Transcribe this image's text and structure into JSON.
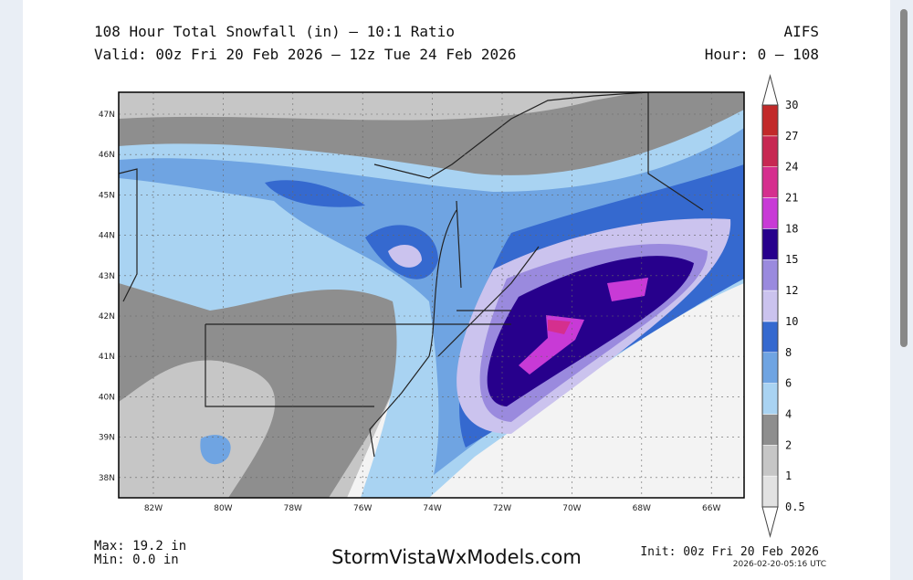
{
  "header": {
    "title": "108 Hour Total Snowfall (in) – 10:1 Ratio",
    "valid": "Valid: 00z Fri 20 Feb 2026 – 12z Tue 24 Feb 2026",
    "model": "AIFS",
    "hour": "Hour: 0 – 108"
  },
  "map": {
    "lat_labels": [
      "47N",
      "46N",
      "45N",
      "44N",
      "43N",
      "42N",
      "41N",
      "40N",
      "39N",
      "38N"
    ],
    "lon_labels": [
      "82W",
      "80W",
      "78W",
      "76W",
      "74W",
      "72W",
      "70W",
      "68W",
      "66W"
    ]
  },
  "colorbar": {
    "levels": [
      0.5,
      1,
      2,
      4,
      6,
      8,
      10,
      12,
      15,
      18,
      21,
      24,
      27,
      30
    ],
    "colors": [
      "#e2e2e2",
      "#c6c6c6",
      "#8e8e8e",
      "#a9d3f2",
      "#6fa4e2",
      "#3569cf",
      "#cbc3ee",
      "#9a8ade",
      "#27008c",
      "#c83ad6",
      "#d52f8e",
      "#c72852",
      "#c22a2a"
    ]
  },
  "footer": {
    "max": "Max: 19.2 in",
    "min": "Min: 0.0 in",
    "site": "StormVistaWxModels.com",
    "init": "Init: 00z Fri 20 Feb 2026",
    "timestamp": "2026-02-20-05:16 UTC"
  }
}
